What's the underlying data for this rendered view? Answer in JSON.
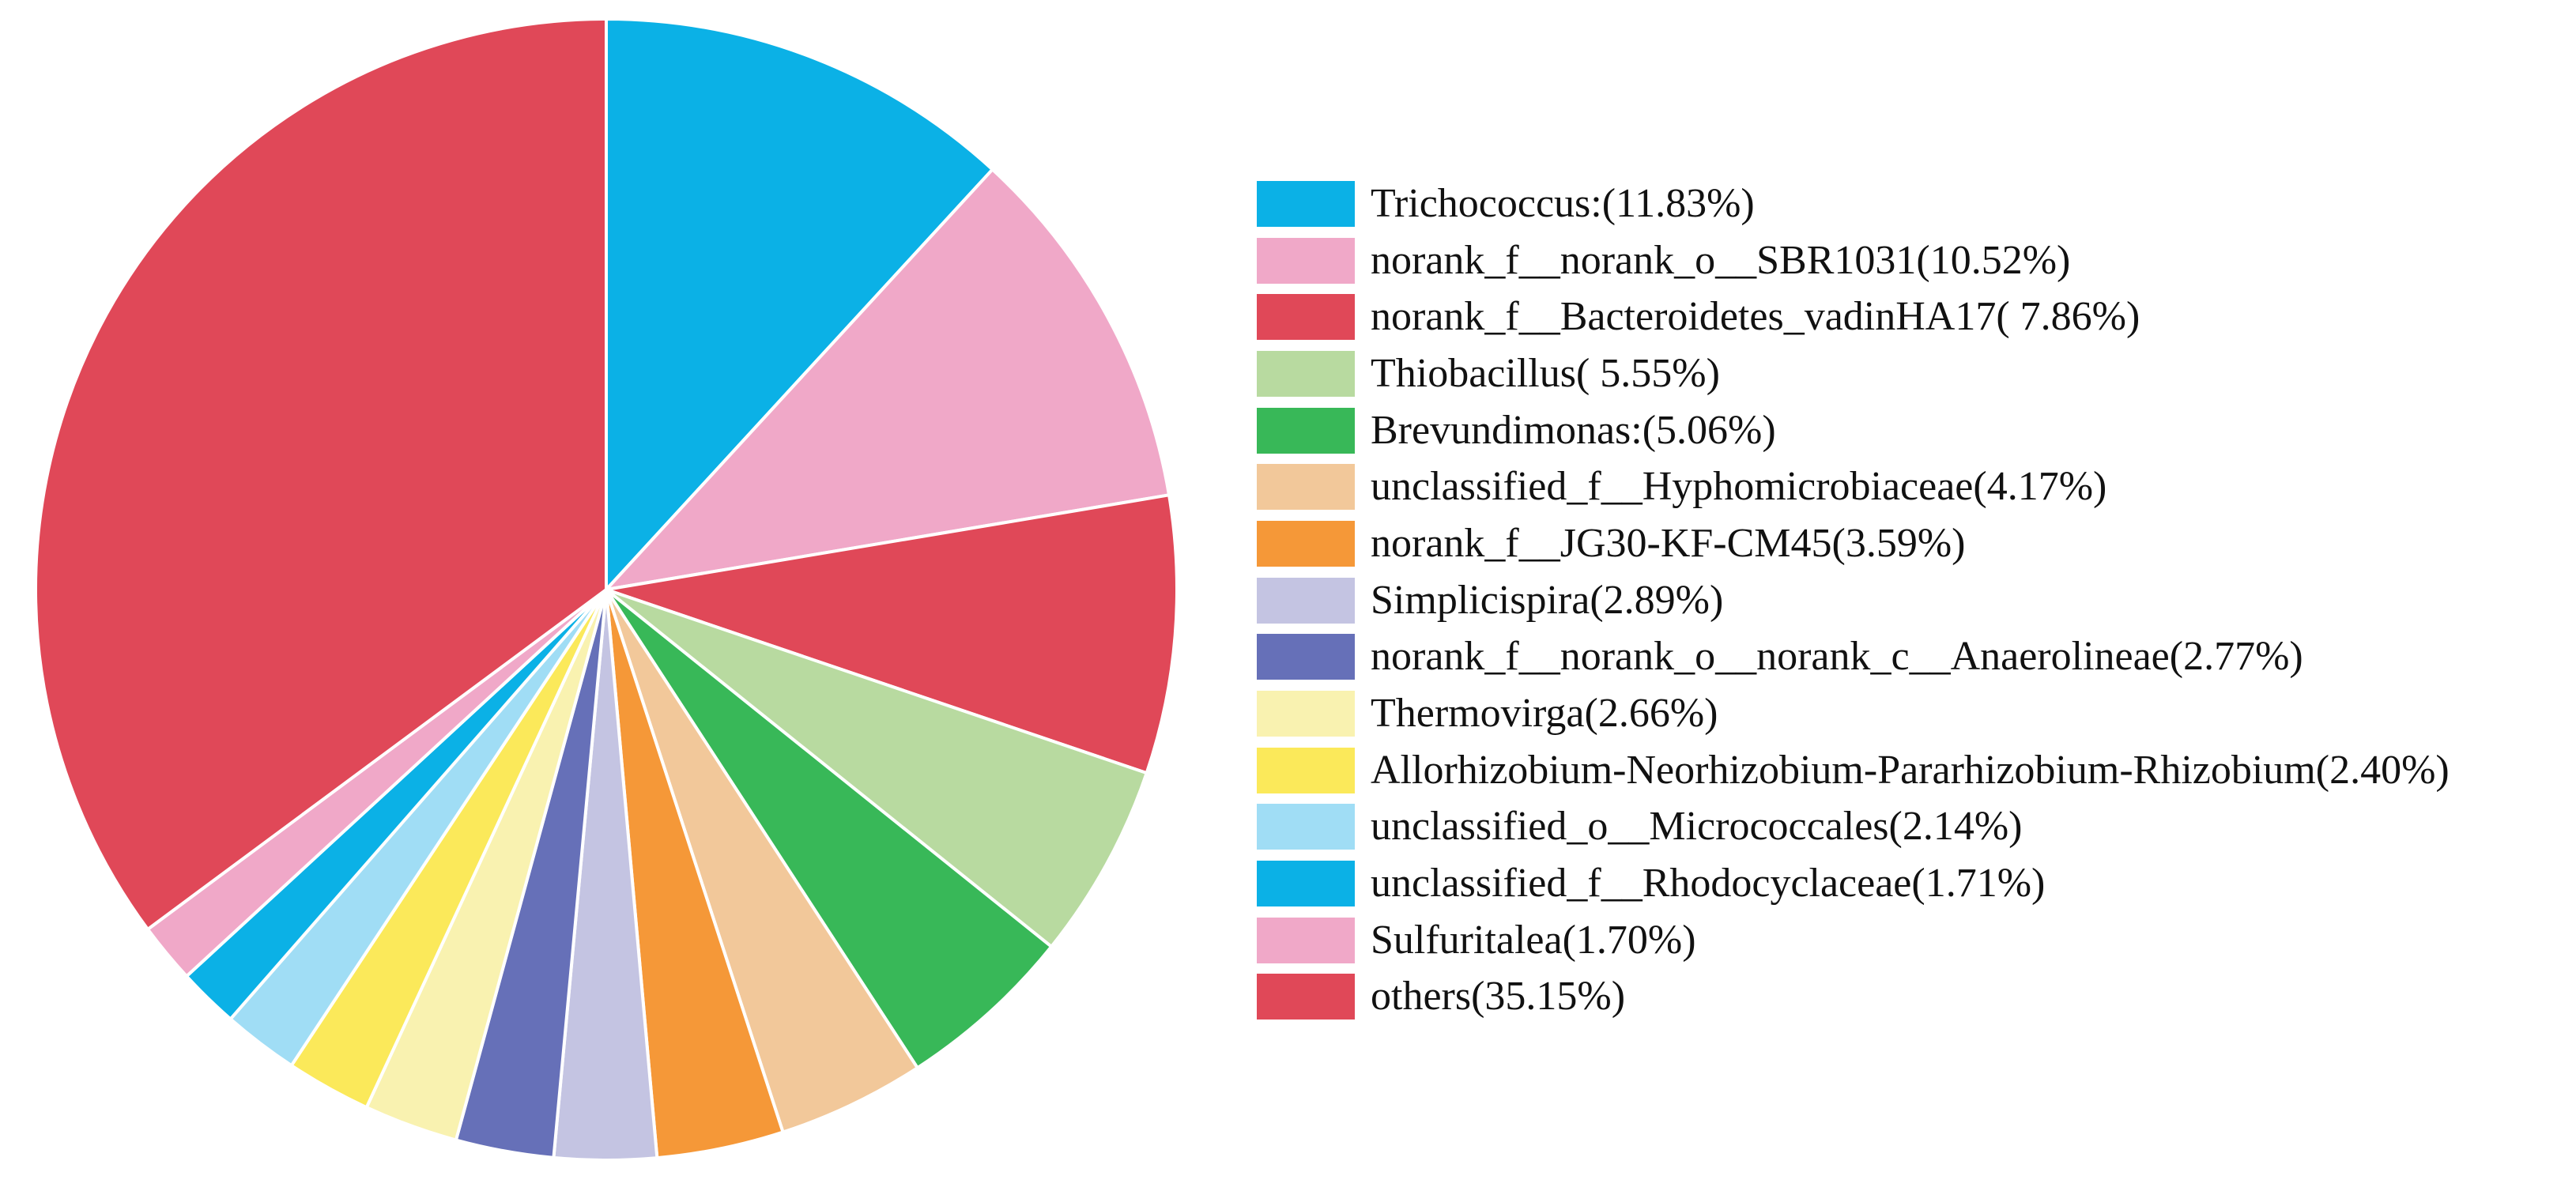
{
  "chart_data": {
    "type": "pie",
    "title": "",
    "start_angle_deg": 0,
    "direction": "clockwise",
    "legend_position": "right",
    "slices": [
      {
        "label": "Trichococcus:(11.83%)",
        "value": 11.83,
        "color": "#0BB1E6"
      },
      {
        "label": "norank_f__norank_o__SBR1031(10.52%)",
        "value": 10.52,
        "color": "#F0A8C8"
      },
      {
        "label": "norank_f__Bacteroidetes_vadinHA17( 7.86%)",
        "value": 7.86,
        "color": "#E04858"
      },
      {
        "label": "Thiobacillus( 5.55%)",
        "value": 5.55,
        "color": "#B8DAA0"
      },
      {
        "label": "Brevundimonas:(5.06%)",
        "value": 5.06,
        "color": "#38B858"
      },
      {
        "label": "unclassified_f__Hyphomicrobiaceae(4.17%)",
        "value": 4.17,
        "color": "#F2C89A"
      },
      {
        "label": "norank_f__JG30-KF-CM45(3.59%)",
        "value": 3.59,
        "color": "#F59838"
      },
      {
        "label": "Simplicispira(2.89%)",
        "value": 2.89,
        "color": "#C4C4E2"
      },
      {
        "label": "norank_f__norank_o__norank_c__Anaerolineae(2.77%)",
        "value": 2.77,
        "color": "#6670B8"
      },
      {
        "label": "Thermovirga(2.66%)",
        "value": 2.66,
        "color": "#F9F2B0"
      },
      {
        "label": "Allorhizobium-Neorhizobium-Pararhizobium-Rhizobium(2.40%)",
        "value": 2.4,
        "color": "#FBE95A"
      },
      {
        "label": "unclassified_o__Micrococcales(2.14%)",
        "value": 2.14,
        "color": "#A0DDF5"
      },
      {
        "label": "unclassified_f__Rhodocyclaceae(1.71%)",
        "value": 1.71,
        "color": "#0BB1E6"
      },
      {
        "label": "Sulfuritalea(1.70%)",
        "value": 1.7,
        "color": "#F0A8C8"
      },
      {
        "label": "others(35.15%)",
        "value": 35.15,
        "color": "#E04858"
      }
    ]
  }
}
